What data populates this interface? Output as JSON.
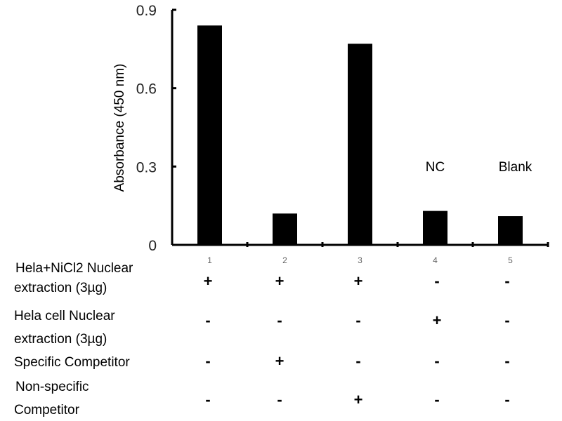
{
  "chart_data": {
    "type": "bar",
    "title": "",
    "xlabel": "",
    "ylabel": "Absorbance (450 nm)",
    "ylim": [
      0,
      0.9
    ],
    "yticks": [
      "0",
      "0.3",
      "0.6",
      "0.9"
    ],
    "ytick_values": [
      0,
      0.3,
      0.6,
      0.9
    ],
    "categories": [
      "1",
      "2",
      "3",
      "4",
      "5"
    ],
    "values": [
      0.84,
      0.12,
      0.77,
      0.13,
      0.11
    ],
    "bar_color": "#000000",
    "annotations": [
      {
        "category": "4",
        "text": "NC"
      },
      {
        "category": "5",
        "text": "Blank"
      }
    ],
    "grid": false
  },
  "conditions": [
    {
      "label_lines": [
        "Hela+NiCl2 Nuclear",
        "extraction (3µg)"
      ],
      "signs": [
        "+",
        "+",
        "+",
        "-",
        "-"
      ]
    },
    {
      "label_lines": [
        "Hela cell Nuclear",
        "extraction (3µg)"
      ],
      "signs": [
        "-",
        "-",
        "-",
        "+",
        "-"
      ]
    },
    {
      "label_lines": [
        "Specific Competitor"
      ],
      "signs": [
        "-",
        "+",
        "-",
        "-",
        "-"
      ]
    },
    {
      "label_lines": [
        "Non-specific",
        "Competitor"
      ],
      "signs": [
        "-",
        "-",
        "+",
        "-",
        "-"
      ]
    }
  ]
}
